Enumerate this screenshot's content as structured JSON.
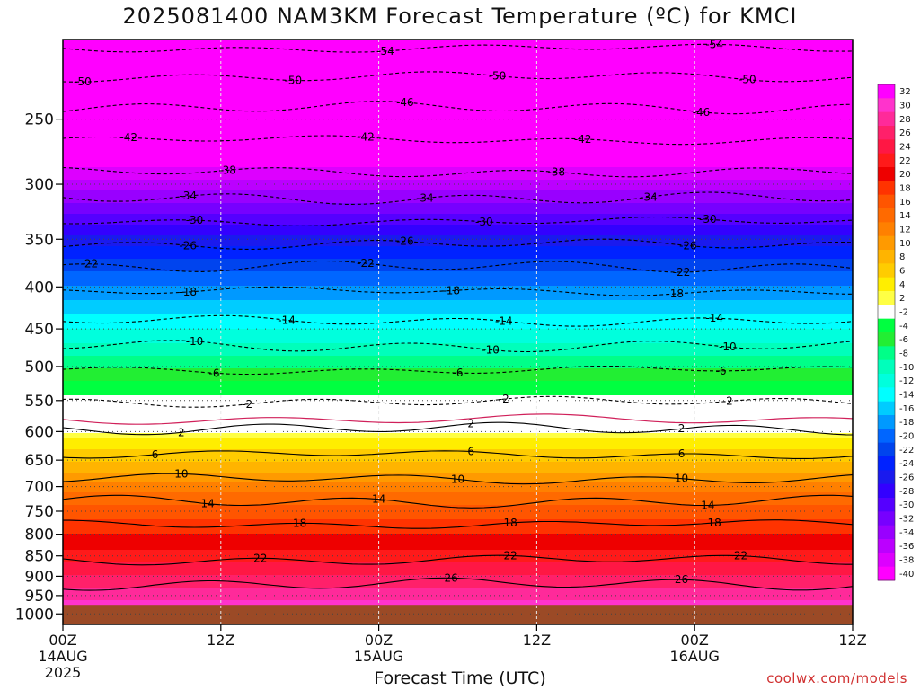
{
  "chart_data": {
    "type": "heatmap",
    "title": "2025081400 NAM3KM Forecast Temperature (ºC) for KMCI",
    "xlabel": "Forecast Time (UTC)",
    "ylabel": "",
    "y_axis": {
      "scale": "log-pressure",
      "inverted": true,
      "ticks": [
        250,
        300,
        350,
        400,
        450,
        500,
        550,
        600,
        650,
        700,
        750,
        800,
        850,
        900,
        950,
        1000
      ]
    },
    "x_axis": {
      "ticks": [
        {
          "hour": 0,
          "label": "00Z",
          "sub1": "14AUG",
          "sub2": "2025"
        },
        {
          "hour": 12,
          "label": "12Z",
          "sub1": "",
          "sub2": ""
        },
        {
          "hour": 24,
          "label": "00Z",
          "sub1": "15AUG",
          "sub2": ""
        },
        {
          "hour": 36,
          "label": "12Z",
          "sub1": "",
          "sub2": ""
        },
        {
          "hour": 48,
          "label": "00Z",
          "sub1": "16AUG",
          "sub2": ""
        },
        {
          "hour": 60,
          "label": "12Z",
          "sub1": "",
          "sub2": ""
        }
      ],
      "range_hours": [
        0,
        60
      ]
    },
    "ylim": [
      200,
      1030
    ],
    "grid": true,
    "surface_pressure": 975,
    "colorbar": {
      "labels": [
        32,
        30,
        28,
        26,
        24,
        22,
        20,
        18,
        16,
        14,
        12,
        10,
        8,
        6,
        4,
        2,
        -2,
        -4,
        -6,
        -8,
        -10,
        -12,
        -14,
        -16,
        -18,
        -20,
        -22,
        -24,
        -26,
        -28,
        -30,
        -32,
        -34,
        -36,
        -38,
        -40
      ],
      "colors": [
        "#ff00ff",
        "#ff33cc",
        "#ff2a9a",
        "#ff206a",
        "#ff1744",
        "#ff1a1a",
        "#ee0000",
        "#ff3300",
        "#ff5500",
        "#ff6a00",
        "#ff8000",
        "#ff9a00",
        "#ffb400",
        "#ffcc00",
        "#ffee00",
        "#ffff44",
        "#ffffff",
        "#00ff40",
        "#22ee33",
        "#00ff88",
        "#00ffbb",
        "#00ffdd",
        "#00ffff",
        "#00ccff",
        "#0099ff",
        "#0066ff",
        "#0044ee",
        "#0022ff",
        "#1a1aee",
        "#3300ff",
        "#5500ff",
        "#7700ff",
        "#9900ff",
        "#bb00ff",
        "#dd00ff",
        "#ff00ff"
      ]
    },
    "temperature_profile": [
      {
        "p": 200,
        "t": -56
      },
      {
        "p": 220,
        "t": -52
      },
      {
        "p": 250,
        "t": -46
      },
      {
        "p": 270,
        "t": -42
      },
      {
        "p": 290,
        "t": -38
      },
      {
        "p": 310,
        "t": -34
      },
      {
        "p": 330,
        "t": -30
      },
      {
        "p": 350,
        "t": -26
      },
      {
        "p": 375,
        "t": -22
      },
      {
        "p": 405,
        "t": -18
      },
      {
        "p": 440,
        "t": -14
      },
      {
        "p": 475,
        "t": -10
      },
      {
        "p": 510,
        "t": -6
      },
      {
        "p": 550,
        "t": -2
      },
      {
        "p": 600,
        "t": 2
      },
      {
        "p": 640,
        "t": 6
      },
      {
        "p": 680,
        "t": 10
      },
      {
        "p": 720,
        "t": 14
      },
      {
        "p": 780,
        "t": 18
      },
      {
        "p": 850,
        "t": 22
      },
      {
        "p": 910,
        "t": 26
      },
      {
        "p": 975,
        "t": 30
      }
    ],
    "contours": [
      {
        "t": -54,
        "p": 205,
        "labels": [
          {
            "h": 24.5
          },
          {
            "h": 49.5
          }
        ]
      },
      {
        "t": -50,
        "p": 222,
        "labels": [
          {
            "h": 1.5
          },
          {
            "h": 17.5
          },
          {
            "h": 33
          },
          {
            "h": 52
          }
        ]
      },
      {
        "t": -46,
        "p": 242,
        "labels": [
          {
            "h": 26
          },
          {
            "h": 48.5
          }
        ]
      },
      {
        "t": -42,
        "p": 265,
        "labels": [
          {
            "h": 5
          },
          {
            "h": 23
          },
          {
            "h": 39.5
          }
        ]
      },
      {
        "t": -38,
        "p": 290,
        "labels": [
          {
            "h": 12.5
          },
          {
            "h": 37.5
          }
        ]
      },
      {
        "t": -34,
        "p": 312,
        "labels": [
          {
            "h": 9.5
          },
          {
            "h": 27.5
          },
          {
            "h": 44.5
          }
        ]
      },
      {
        "t": -30,
        "p": 333,
        "labels": [
          {
            "h": 10
          },
          {
            "h": 32
          },
          {
            "h": 49
          }
        ]
      },
      {
        "t": -26,
        "p": 355,
        "labels": [
          {
            "h": 9.5
          },
          {
            "h": 26
          },
          {
            "h": 47.5
          }
        ]
      },
      {
        "t": -22,
        "p": 378,
        "labels": [
          {
            "h": 2
          },
          {
            "h": 23
          },
          {
            "h": 47
          }
        ]
      },
      {
        "t": -18,
        "p": 405,
        "labels": [
          {
            "h": 9.5
          },
          {
            "h": 29.5
          },
          {
            "h": 46.5
          }
        ]
      },
      {
        "t": -14,
        "p": 440,
        "labels": [
          {
            "h": 17
          },
          {
            "h": 33.5
          },
          {
            "h": 49.5
          }
        ]
      },
      {
        "t": -10,
        "p": 472,
        "labels": [
          {
            "h": 10
          },
          {
            "h": 32.5
          },
          {
            "h": 50.5
          }
        ]
      },
      {
        "t": -6,
        "p": 505,
        "labels": [
          {
            "h": 11.5
          },
          {
            "h": 30
          },
          {
            "h": 50
          }
        ]
      },
      {
        "t": -2,
        "p": 552,
        "labels": [
          {
            "h": 14
          },
          {
            "h": 33.5
          },
          {
            "h": 50.5
          }
        ]
      },
      {
        "t": 2,
        "p": 595,
        "labels": [
          {
            "h": 9
          },
          {
            "h": 31
          },
          {
            "h": 47
          }
        ]
      },
      {
        "t": 6,
        "p": 640,
        "labels": [
          {
            "h": 7
          },
          {
            "h": 31
          },
          {
            "h": 47
          }
        ]
      },
      {
        "t": 10,
        "p": 685,
        "labels": [
          {
            "h": 9
          },
          {
            "h": 30
          },
          {
            "h": 47
          }
        ]
      },
      {
        "t": 14,
        "p": 730,
        "labels": [
          {
            "h": 11
          },
          {
            "h": 24
          },
          {
            "h": 49
          }
        ]
      },
      {
        "t": 18,
        "p": 778,
        "labels": [
          {
            "h": 18
          },
          {
            "h": 34
          },
          {
            "h": 49.5
          }
        ]
      },
      {
        "t": 22,
        "p": 860,
        "labels": [
          {
            "h": 15
          },
          {
            "h": 34
          },
          {
            "h": 51.5
          }
        ]
      },
      {
        "t": 26,
        "p": 920,
        "labels": [
          {
            "h": 29.5
          },
          {
            "h": 47
          }
        ]
      }
    ],
    "watermark": "coolwx.com/models"
  }
}
